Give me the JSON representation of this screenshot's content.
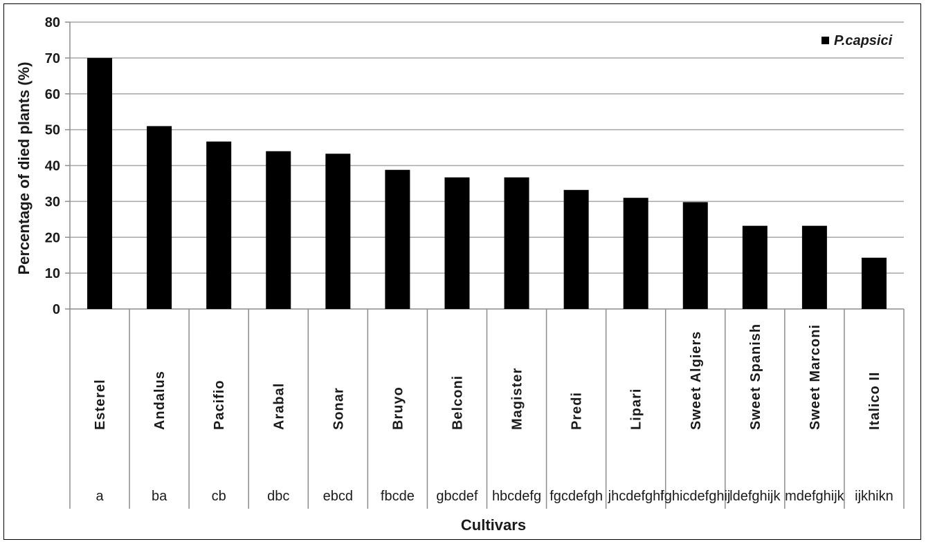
{
  "chart_data": {
    "type": "bar",
    "categories": [
      "Esterel",
      "Andalus",
      "Pacifio",
      "Arabal",
      "Sonar",
      "Bruyo",
      "Belconi",
      "Magister",
      "Predi",
      "Lipari",
      "Sweet Algiers",
      "Sweet Spanish",
      "Sweet Marconi",
      "Italico II"
    ],
    "group_letters": [
      "a",
      "ba",
      "cb",
      "dbc",
      "ebcd",
      "fbcde",
      "gbcdef",
      "hbcdefg",
      "fgcdefgh",
      "jhcdefghi",
      "fghicdefghij",
      "ldefghijk",
      "mdefghijk",
      "ijkhikn"
    ],
    "series": [
      {
        "name": "P.capsici",
        "values": [
          70,
          51,
          46.7,
          44,
          43.3,
          38.8,
          36.7,
          36.7,
          33.2,
          31,
          29.8,
          23.2,
          23.2,
          14.3
        ]
      }
    ],
    "xlabel": "Cultivars",
    "ylabel": "Percentage of  died plants (%)",
    "ylim": [
      0,
      80
    ],
    "yticks": [
      0,
      10,
      20,
      30,
      40,
      50,
      60,
      70,
      80
    ],
    "grid": true,
    "legend": "top-right",
    "colors": {
      "bar": "#000000",
      "grid": "#a6a6a6",
      "axis": "#8c8c8c"
    }
  }
}
